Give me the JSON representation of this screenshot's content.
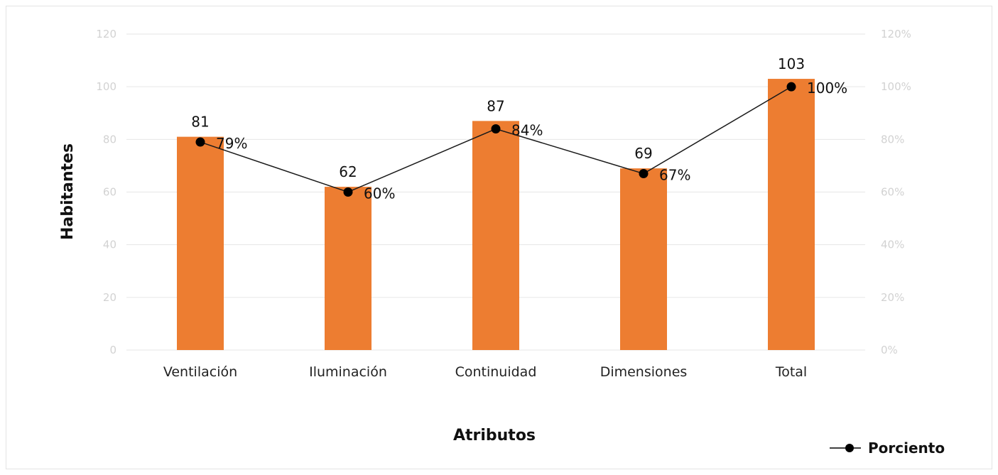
{
  "chart_data": {
    "type": "bar",
    "categories": [
      "Ventilación",
      "Iluminación",
      "Continuidad",
      "Dimensiones",
      "Total"
    ],
    "series": [
      {
        "values": [
          81,
          62,
          87,
          69,
          103
        ],
        "color": "#ED7D31",
        "axis": "left",
        "kind": "bar"
      },
      {
        "name": "Porciento",
        "values": [
          79,
          60,
          84,
          67,
          100
        ],
        "color": "#000000",
        "axis": "right",
        "kind": "line",
        "label_suffix": "%"
      }
    ],
    "xlabel": "Atributos",
    "ylabel": "Habitantes",
    "ylim": [
      0,
      120
    ],
    "y2lim": [
      0,
      120
    ],
    "yticks": [
      "0",
      "20",
      "40",
      "60",
      "80",
      "100",
      "120"
    ],
    "y2ticks": [
      "0%",
      "20%",
      "40%",
      "60%",
      "80%",
      "100%",
      "120%"
    ],
    "grid": true,
    "legend": {
      "position": "bottom-right",
      "entries": [
        "Porciento"
      ]
    }
  }
}
